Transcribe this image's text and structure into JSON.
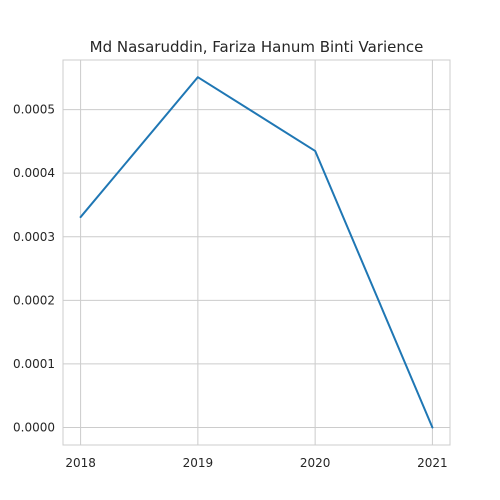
{
  "chart_data": {
    "type": "line",
    "title": "Md Nasaruddin, Fariza Hanum Binti Varience",
    "xlabel": "",
    "ylabel": "",
    "x": [
      2018,
      2019,
      2020,
      2021
    ],
    "x_tick_labels": [
      "2018",
      "2019",
      "2020",
      "2021"
    ],
    "y_tick_values": [
      0.0,
      0.0001,
      0.0002,
      0.0003,
      0.0004,
      0.0005
    ],
    "y_tick_labels": [
      "0.0000",
      "0.0001",
      "0.0002",
      "0.0003",
      "0.0004",
      "0.0005"
    ],
    "xlim": [
      2017.85,
      2021.15
    ],
    "ylim": [
      -2.75e-05,
      0.000578
    ],
    "grid": true,
    "series": [
      {
        "color": "#1f77b4",
        "values": [
          0.000331,
          0.000551,
          0.000435,
          0.0
        ]
      }
    ]
  }
}
